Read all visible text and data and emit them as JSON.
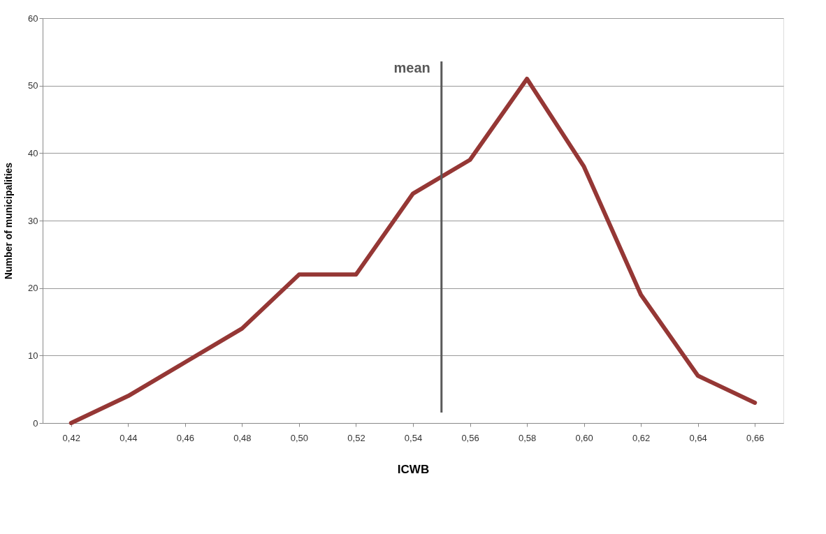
{
  "chart_data": {
    "type": "line",
    "xlabel": "ICWB",
    "ylabel": "Number of municipalities",
    "x": [
      0.42,
      0.44,
      0.46,
      0.48,
      0.5,
      0.52,
      0.54,
      0.56,
      0.58,
      0.6,
      0.62,
      0.64,
      0.66
    ],
    "series": [
      {
        "color": "#953735",
        "values": [
          0,
          4,
          9,
          14,
          22,
          22,
          34,
          39,
          51,
          38,
          19,
          7,
          3
        ]
      }
    ],
    "xlim": [
      0.41,
      0.67
    ],
    "xticks": [
      {
        "value": 0.42,
        "label": "0,42"
      },
      {
        "value": 0.44,
        "label": "0,44"
      },
      {
        "value": 0.46,
        "label": "0,46"
      },
      {
        "value": 0.48,
        "label": "0,48"
      },
      {
        "value": 0.5,
        "label": "0,50"
      },
      {
        "value": 0.52,
        "label": "0,52"
      },
      {
        "value": 0.54,
        "label": "0,54"
      },
      {
        "value": 0.56,
        "label": "0,56"
      },
      {
        "value": 0.58,
        "label": "0,58"
      },
      {
        "value": 0.6,
        "label": "0,60"
      },
      {
        "value": 0.62,
        "label": "0,62"
      },
      {
        "value": 0.64,
        "label": "0,64"
      },
      {
        "value": 0.66,
        "label": "0,66"
      }
    ],
    "ylim": [
      0,
      60
    ],
    "yticks": [
      0,
      10,
      20,
      30,
      40,
      50,
      60
    ],
    "ref_lines": [
      {
        "axis": "x",
        "value": 0.55,
        "label": "mean",
        "color": "#595959"
      }
    ],
    "grid": "y",
    "marker": "none",
    "line_style": "solid"
  }
}
